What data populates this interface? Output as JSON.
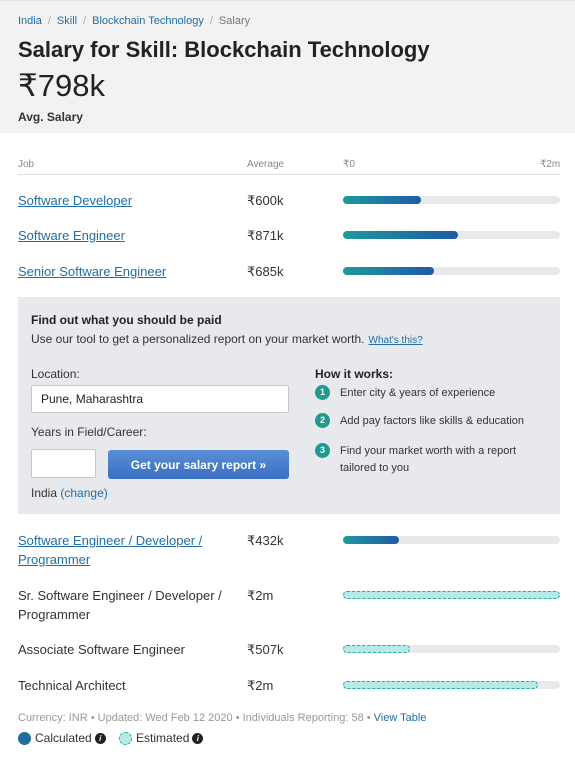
{
  "breadcrumb": {
    "items": [
      "India",
      "Skill",
      "Blockchain Technology"
    ],
    "current": "Salary",
    "separator": "/"
  },
  "header": {
    "title": "Salary for Skill: Blockchain Technology",
    "salary": "₹798k",
    "salary_label": "Avg. Salary"
  },
  "table": {
    "col_job": "Job",
    "col_average": "Average",
    "scale_min": "₹0",
    "scale_max": "₹2m",
    "rows": [
      {
        "job": "Software Developer",
        "average": "₹600k",
        "fraction": 0.36,
        "type": "calculated",
        "link": true
      },
      {
        "job": "Software Engineer",
        "average": "₹871k",
        "fraction": 0.53,
        "type": "calculated",
        "link": true
      },
      {
        "job": "Senior Software Engineer",
        "average": "₹685k",
        "fraction": 0.42,
        "type": "calculated",
        "link": true
      },
      {
        "job": "Software Engineer / Developer / Programmer",
        "average": "₹432k",
        "fraction": 0.26,
        "type": "calculated",
        "link": true
      },
      {
        "job": "Sr. Software Engineer / Developer / Programmer",
        "average": "₹2m",
        "fraction": 1.0,
        "type": "estimated",
        "link": false
      },
      {
        "job": "Associate Software Engineer",
        "average": "₹507k",
        "fraction": 0.31,
        "type": "estimated",
        "link": false
      },
      {
        "job": "Technical Architect",
        "average": "₹2m",
        "fraction": 0.9,
        "type": "estimated",
        "link": false
      }
    ]
  },
  "promo": {
    "title": "Find out what you should be paid",
    "subtitle": "Use our tool to get a personalized report on your market worth.",
    "whats_this": "What's this?",
    "location_label": "Location:",
    "location_value": "Pune, Maharashtra",
    "years_label": "Years in Field/Career:",
    "years_value": "",
    "button_label": "Get your salary report »",
    "country": "India",
    "change_label": "(change)",
    "how_title": "How it works:",
    "steps": [
      {
        "num": "1",
        "text": "Enter city & years of experience"
      },
      {
        "num": "2",
        "text": "Add pay factors like skills & education"
      },
      {
        "num": "3",
        "text": "Find your market worth with a report tailored to you"
      }
    ]
  },
  "footer": {
    "currency": "Currency: INR",
    "updated": "Updated: Wed Feb 12 2020",
    "reporting": "Individuals Reporting: 58",
    "view_table": "View Table",
    "bullet": "•",
    "legend_calculated": "Calculated",
    "legend_estimated": "Estimated",
    "info_glyph": "i"
  },
  "colors": {
    "link": "#1f6ea6",
    "bar_start": "#1e9a9a",
    "bar_end": "#1f5aa8",
    "estimated_fill": "#b5eae6",
    "estimated_border": "#2ba8a0",
    "step_badge": "#1e9a8e",
    "button": "#3a6fc2"
  }
}
